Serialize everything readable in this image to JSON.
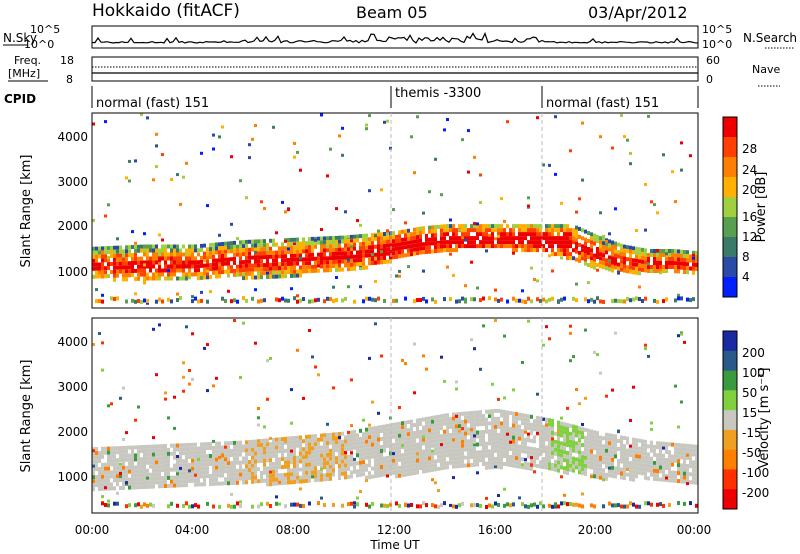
{
  "header": {
    "station": "Hokkaido (fitACF)",
    "beam": "Beam 05",
    "date": "03/Apr/2012"
  },
  "top_panel": {
    "left_label": "N.Sky",
    "right_label": "N.Search",
    "yticks": [
      "10^5",
      "10^0"
    ]
  },
  "freq_panel": {
    "left_label": "Freq.",
    "unit": "[MHz]",
    "right_label": "Nave",
    "left_ticks": [
      "18",
      "8"
    ],
    "right_ticks": [
      "60",
      "0"
    ]
  },
  "cpid_panel": {
    "label": "CPID",
    "segments": [
      "normal (fast) 151",
      "themis -3300",
      "normal (fast) 151"
    ]
  },
  "power_panel": {
    "ylabel": "Slant Range [km]",
    "yticks": [
      "1000",
      "2000",
      "3000",
      "4000"
    ],
    "colorbar_label": "Power [dB]",
    "colorbar_ticks": [
      "4",
      "8",
      "12",
      "16",
      "20",
      "24",
      "28"
    ],
    "colors": [
      "#0020ff",
      "#2a4aa8",
      "#3a7a6a",
      "#58a050",
      "#a0d040",
      "#ffb000",
      "#ff8000",
      "#ff4000",
      "#ee0000"
    ]
  },
  "velocity_panel": {
    "ylabel": "Slant Range [km]",
    "yticks": [
      "1000",
      "2000",
      "3000",
      "4000"
    ],
    "colorbar_label": "Velocity [m s⁻¹]",
    "colorbar_ticks": [
      "200",
      "100",
      "50",
      "15",
      "-15",
      "-50",
      "-100",
      "-200"
    ],
    "colors": [
      "#1a2aa0",
      "#2a5a8a",
      "#3a9a40",
      "#80d040",
      "#c8c8c0",
      "#f0a020",
      "#ff8000",
      "#ff3000",
      "#ee0000"
    ]
  },
  "x_axis": {
    "label": "Time UT",
    "ticks": [
      "00:00",
      "04:00",
      "08:00",
      "12:00",
      "16:00",
      "20:00",
      "00:00"
    ]
  },
  "chart_data": {
    "type": "heatmap",
    "x_range_hours": [
      0,
      24
    ],
    "y_range_km": [
      200,
      4500
    ],
    "cpid_switch_hours": [
      12,
      18
    ],
    "power_band": {
      "hours": [
        0,
        2,
        4,
        6,
        8,
        10,
        11,
        12,
        13,
        14,
        15,
        16,
        17,
        18,
        19,
        20,
        21,
        22,
        23,
        24
      ],
      "lower_km": [
        900,
        800,
        900,
        900,
        950,
        1050,
        1150,
        1300,
        1400,
        1500,
        1550,
        1550,
        1500,
        1450,
        1300,
        1100,
        1000,
        1000,
        1000,
        1000
      ],
      "upper_km": [
        1550,
        1600,
        1600,
        1700,
        1750,
        1800,
        1850,
        1900,
        2000,
        2050,
        2050,
        2050,
        2050,
        2050,
        2050,
        1800,
        1600,
        1500,
        1500,
        1450
      ]
    },
    "velocity_band": {
      "hours": [
        0,
        2,
        4,
        6,
        8,
        10,
        12,
        14,
        16,
        18,
        20,
        22,
        24
      ],
      "lower_km": [
        700,
        750,
        800,
        850,
        900,
        1000,
        1050,
        1200,
        1250,
        1200,
        1000,
        950,
        900
      ],
      "upper_km": [
        1650,
        1700,
        1750,
        1800,
        1900,
        2000,
        2200,
        2400,
        2500,
        2300,
        2000,
        1800,
        1700
      ]
    }
  }
}
